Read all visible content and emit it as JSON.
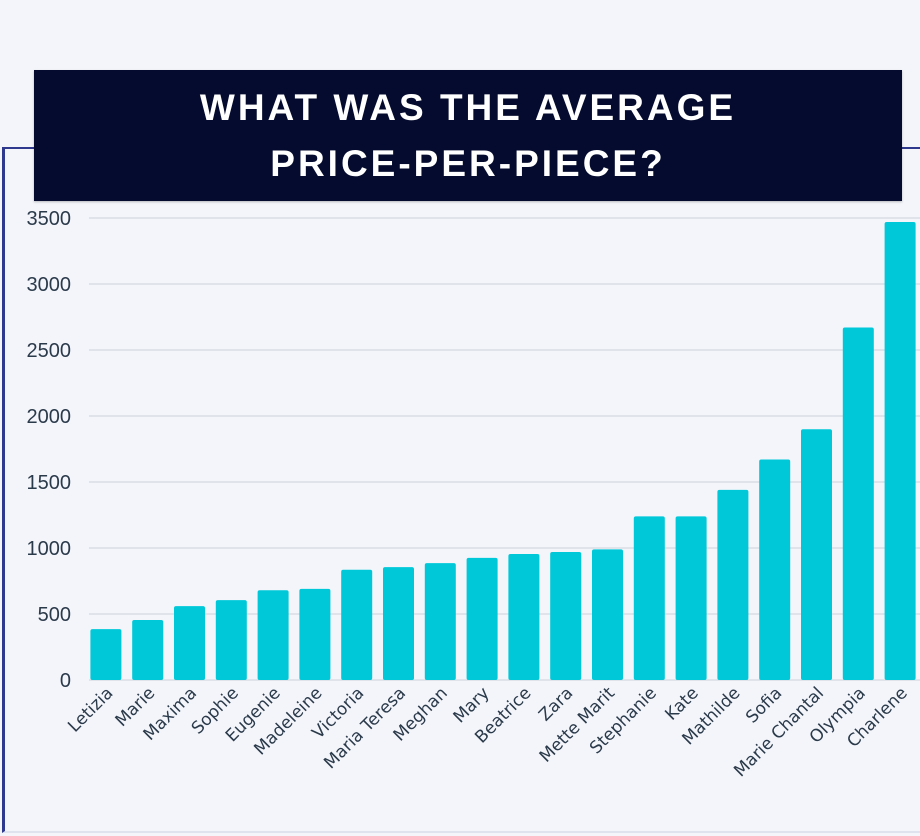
{
  "colors": {
    "bar": "#00c8d8",
    "title_bg": "#050b2e",
    "title_text": "#ffffff",
    "gridline": "#cdd1d9",
    "tick_text": "#2b3a4a",
    "frame": "#2f3a8f",
    "background": "#f3f5fb"
  },
  "chart_data": {
    "type": "bar",
    "title_lines": [
      "WHAT WAS THE AVERAGE",
      "PRICE-PER-PIECE?"
    ],
    "xlabel": "",
    "ylabel": "",
    "ylim": [
      0,
      3500
    ],
    "yticks": [
      0,
      500,
      1000,
      1500,
      2000,
      2500,
      3000,
      3500
    ],
    "grid": true,
    "legend": "none",
    "categories": [
      "Letizia",
      "Marie",
      "Maxima",
      "Sophie",
      "Eugenie",
      "Madeleine",
      "Victoria",
      "Maria Teresa",
      "Meghan",
      "Mary",
      "Beatrice",
      "Zara",
      "Mette Marit",
      "Stephanie",
      "Kate",
      "Mathilde",
      "Sofia",
      "Marie Chantal",
      "Olympia",
      "Charlene"
    ],
    "values": [
      385,
      455,
      560,
      605,
      680,
      690,
      835,
      855,
      885,
      925,
      955,
      970,
      990,
      1240,
      1240,
      1440,
      1670,
      1900,
      2670,
      3470
    ]
  }
}
